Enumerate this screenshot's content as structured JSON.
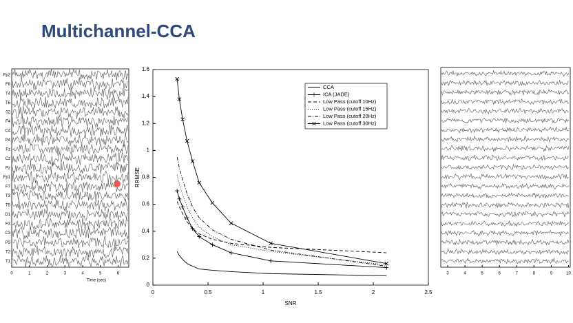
{
  "slide_title": "Multichannel-CCA",
  "left_eeg": {
    "channels": [
      "Fp2",
      "F8",
      "T4",
      "T6",
      "02",
      "F4",
      "C4",
      "P4",
      "Fz",
      "Cz",
      "Pz",
      "Fp1",
      "F7",
      "T3",
      "T5",
      "O1",
      "F3",
      "C3",
      "P3",
      "T2",
      "T1"
    ],
    "xticks": [
      0,
      1,
      2,
      3,
      4,
      5,
      6
    ],
    "xlim": [
      0,
      6.6
    ],
    "xlabel": "Time (sec)"
  },
  "right_eeg": {
    "xticks": [
      3,
      4,
      5,
      6,
      7,
      8,
      9,
      10
    ],
    "xlim": [
      2.6,
      10.1
    ]
  },
  "chart_data": {
    "type": "line",
    "xlabel": "SNR",
    "ylabel": "RRMSE",
    "xlim": [
      0,
      2.5
    ],
    "xticks": [
      0,
      0.5,
      1,
      1.5,
      2,
      2.5
    ],
    "ylim": [
      0,
      1.6
    ],
    "yticks": [
      0,
      0.2,
      0.4,
      0.6,
      0.8,
      1,
      1.2,
      1.4,
      1.6
    ],
    "x": [
      0.22,
      0.24,
      0.27,
      0.31,
      0.36,
      0.42,
      0.54,
      0.71,
      1.07,
      2.12
    ],
    "series": [
      {
        "name": "CCA",
        "color": "#000000",
        "dash": "solid",
        "marker": "none",
        "values": [
          0.25,
          0.22,
          0.19,
          0.16,
          0.14,
          0.12,
          0.11,
          0.1,
          0.085,
          0.07
        ]
      },
      {
        "name": "ICA (JADE)",
        "color": "#000000",
        "dash": "solid",
        "marker": "plus",
        "values": [
          0.7,
          0.64,
          0.58,
          0.5,
          0.42,
          0.36,
          0.3,
          0.24,
          0.18,
          0.13
        ]
      },
      {
        "name": "Low Pass (cutoff 10Hz)",
        "color": "#000000",
        "dash": "dashed",
        "marker": "none",
        "values": [
          0.62,
          0.58,
          0.53,
          0.47,
          0.42,
          0.38,
          0.34,
          0.31,
          0.28,
          0.24
        ]
      },
      {
        "name": "Low Pass (cutoff 15Hz)",
        "color": "#000000",
        "dash": "dotted",
        "marker": "none",
        "values": [
          0.82,
          0.75,
          0.67,
          0.58,
          0.5,
          0.43,
          0.36,
          0.3,
          0.25,
          0.15
        ]
      },
      {
        "name": "Low Pass (cutoff 20Hz)",
        "color": "#000000",
        "dash": "dashdot",
        "marker": "none",
        "values": [
          0.95,
          0.87,
          0.78,
          0.68,
          0.58,
          0.5,
          0.41,
          0.34,
          0.26,
          0.14
        ]
      },
      {
        "name": "Low Pass (cutoff 30Hz)",
        "color": "#000000",
        "dash": "solid",
        "marker": "x",
        "values": [
          1.53,
          1.38,
          1.23,
          1.07,
          0.92,
          0.76,
          0.61,
          0.46,
          0.31,
          0.16
        ]
      }
    ],
    "legend": "upper right"
  }
}
